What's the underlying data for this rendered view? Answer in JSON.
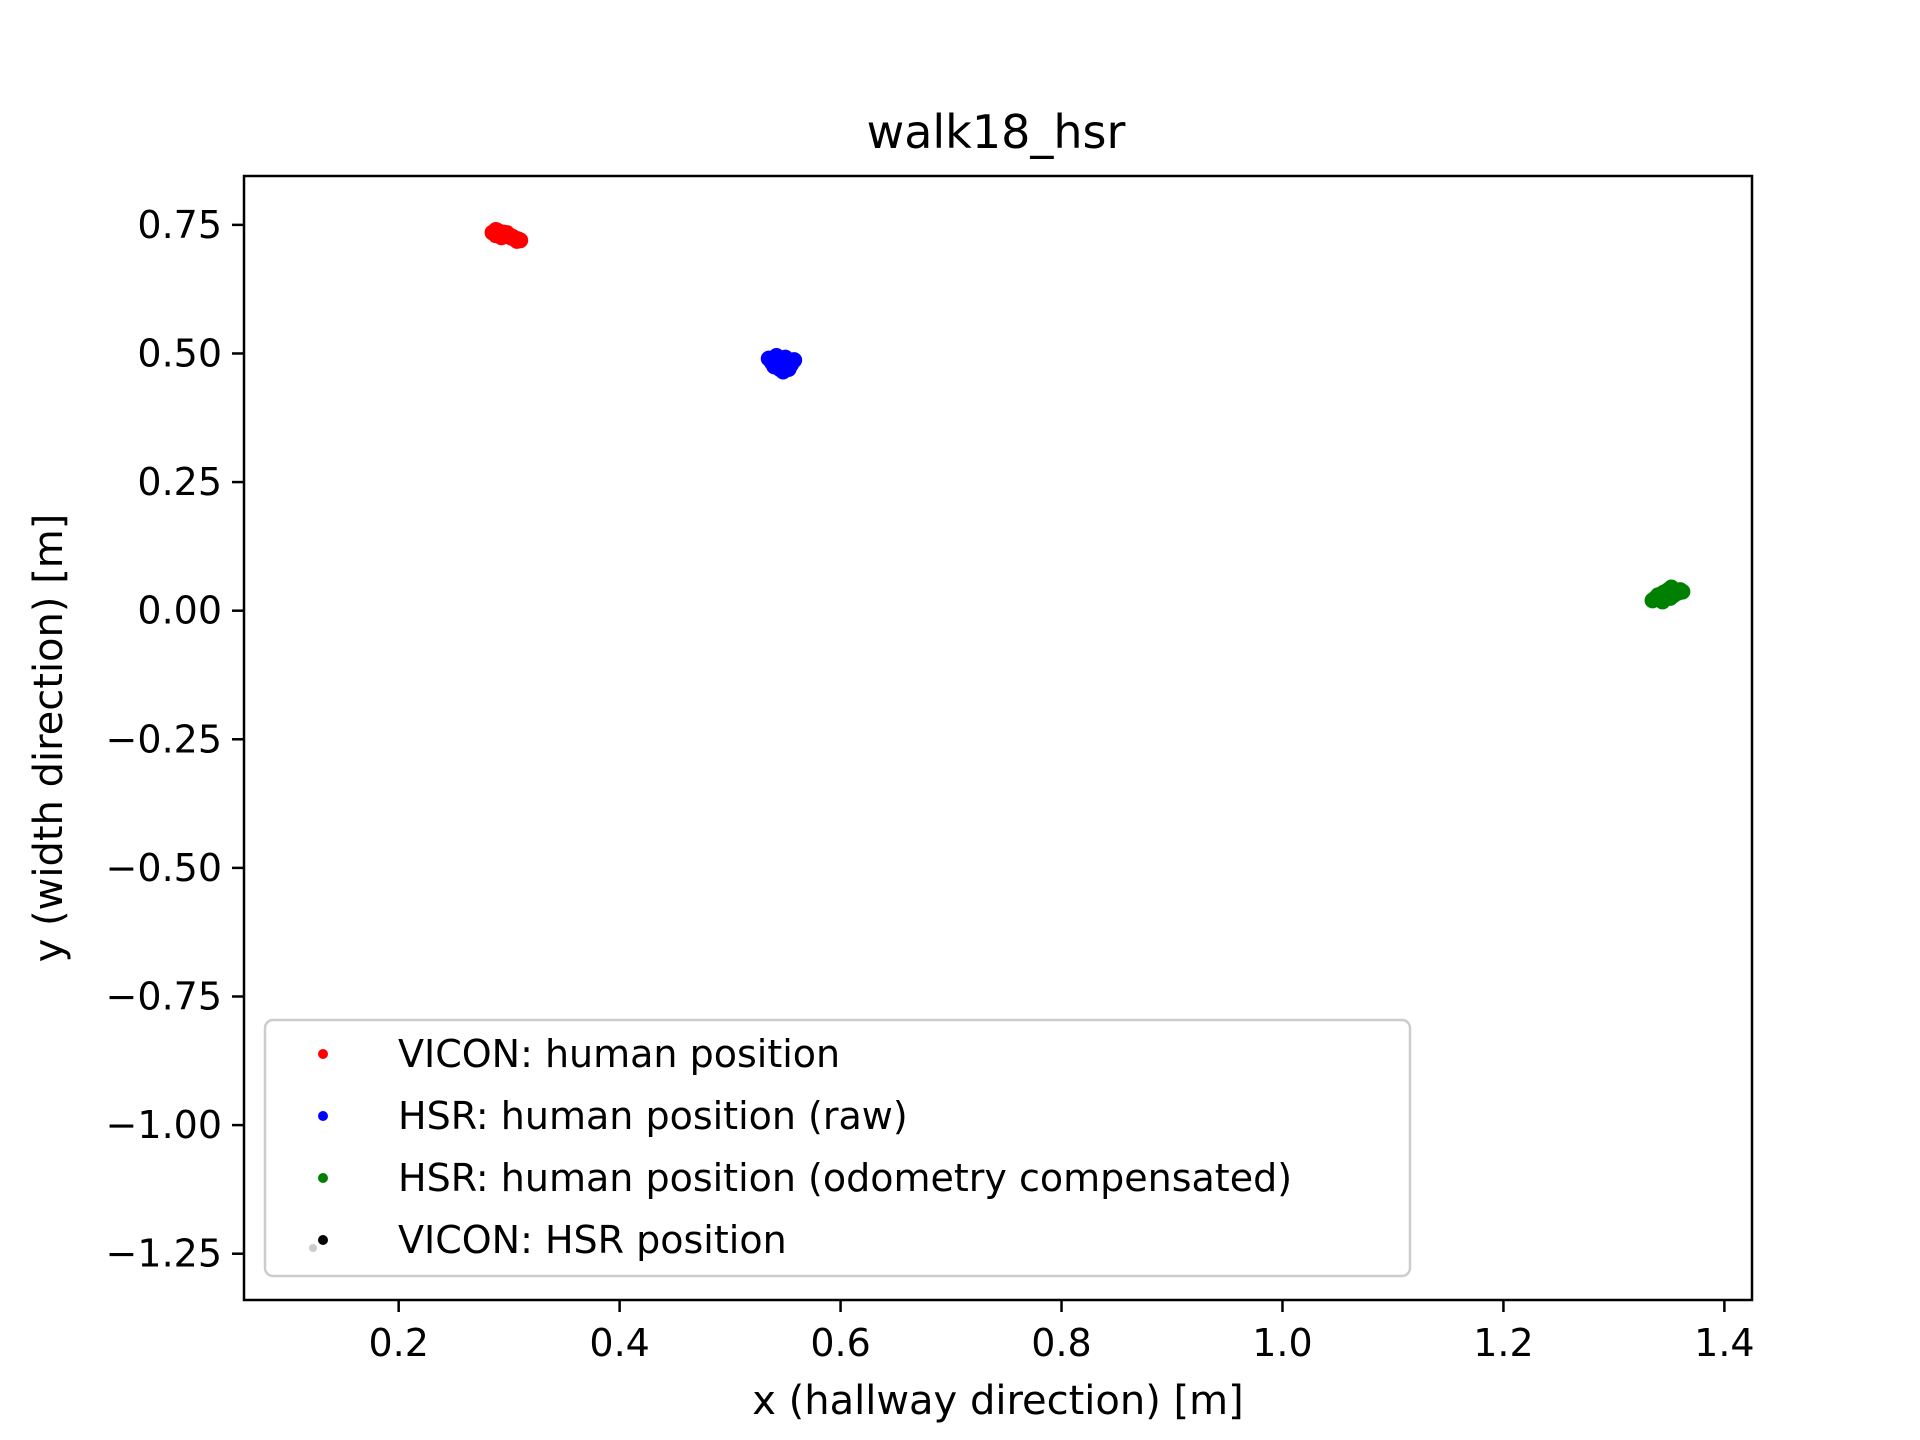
{
  "chart_data": {
    "type": "scatter",
    "title": "walk18_hsr",
    "xlabel": "x (hallway direction) [m]",
    "ylabel": "y (width direction) [m]",
    "xlim": [
      0.06,
      1.425
    ],
    "ylim": [
      -1.34,
      0.845
    ],
    "xticks": [
      0.2,
      0.4,
      0.6,
      0.8,
      1.0,
      1.2,
      1.4
    ],
    "xtick_labels": [
      "0.2",
      "0.4",
      "0.6",
      "0.8",
      "1.0",
      "1.2",
      "1.4"
    ],
    "yticks": [
      0.75,
      0.5,
      0.25,
      0.0,
      -0.25,
      -0.5,
      -0.75,
      -1.0,
      -1.25
    ],
    "ytick_labels": [
      "0.75",
      "0.50",
      "0.25",
      "0.00",
      "−0.25",
      "−0.50",
      "−0.75",
      "−1.00",
      "−1.25"
    ],
    "grid": false,
    "legend_position": "lower-left",
    "series": [
      {
        "name": "VICON: human position",
        "color": "#ff0000",
        "points": [
          [
            0.285,
            0.735
          ],
          [
            0.288,
            0.73
          ],
          [
            0.29,
            0.738
          ],
          [
            0.292,
            0.732
          ],
          [
            0.295,
            0.735
          ],
          [
            0.297,
            0.728
          ],
          [
            0.3,
            0.73
          ],
          [
            0.302,
            0.725
          ],
          [
            0.305,
            0.724
          ],
          [
            0.308,
            0.722
          ],
          [
            0.31,
            0.72
          ],
          [
            0.288,
            0.74
          ],
          [
            0.293,
            0.726
          ],
          [
            0.298,
            0.734
          ],
          [
            0.303,
            0.727
          ],
          [
            0.307,
            0.719
          ]
        ]
      },
      {
        "name": "HSR: human position (raw)",
        "color": "#0000ff",
        "points": [
          [
            0.535,
            0.49
          ],
          [
            0.538,
            0.482
          ],
          [
            0.54,
            0.475
          ],
          [
            0.543,
            0.488
          ],
          [
            0.545,
            0.47
          ],
          [
            0.547,
            0.48
          ],
          [
            0.55,
            0.492
          ],
          [
            0.552,
            0.485
          ],
          [
            0.555,
            0.478
          ],
          [
            0.558,
            0.487
          ],
          [
            0.548,
            0.465
          ],
          [
            0.542,
            0.495
          ],
          [
            0.553,
            0.47
          ],
          [
            0.546,
            0.49
          ],
          [
            0.551,
            0.476
          ],
          [
            0.539,
            0.486
          ]
        ]
      },
      {
        "name": "HSR: human position (odometry compensated)",
        "color": "#008000",
        "points": [
          [
            1.335,
            0.02
          ],
          [
            1.338,
            0.025
          ],
          [
            1.34,
            0.03
          ],
          [
            1.342,
            0.022
          ],
          [
            1.345,
            0.035
          ],
          [
            1.347,
            0.028
          ],
          [
            1.349,
            0.04
          ],
          [
            1.35,
            0.032
          ],
          [
            1.352,
            0.045
          ],
          [
            1.354,
            0.03
          ],
          [
            1.356,
            0.038
          ],
          [
            1.358,
            0.035
          ],
          [
            1.36,
            0.04
          ],
          [
            1.362,
            0.037
          ],
          [
            1.344,
            0.018
          ],
          [
            1.351,
            0.025
          ]
        ]
      },
      {
        "name": "VICON: HSR position",
        "color": "#000000",
        "points": []
      }
    ]
  }
}
